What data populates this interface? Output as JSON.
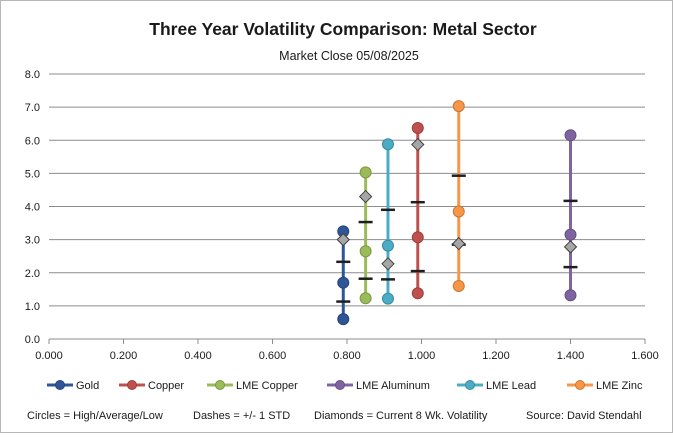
{
  "chart_data": {
    "type": "scatter",
    "title": "Three Year Volatility Comparison:  Metal Sector",
    "subtitle": "Market Close 05/08/2025",
    "xlim": [
      0,
      1.6
    ],
    "ylim": [
      0,
      8
    ],
    "x_ticks": [
      "0.000",
      "0.200",
      "0.400",
      "0.600",
      "0.800",
      "1.000",
      "1.200",
      "1.400",
      "1.600"
    ],
    "y_ticks": [
      "0.0",
      "1.0",
      "2.0",
      "3.0",
      "4.0",
      "5.0",
      "6.0",
      "7.0",
      "8.0"
    ],
    "grid": "horizontal",
    "legend_position": "bottom",
    "series": [
      {
        "name": "Gold",
        "color": "#2f5597",
        "x": 0.79,
        "high": 3.25,
        "average": 1.7,
        "low": 0.6,
        "std_upper": 2.33,
        "std_lower": 1.13,
        "current": 3.0
      },
      {
        "name": "Copper",
        "color": "#c0504d",
        "x": 0.99,
        "high": 6.37,
        "average": 3.07,
        "low": 1.38,
        "std_upper": 4.13,
        "std_lower": 2.05,
        "current": 5.87
      },
      {
        "name": "LME Copper",
        "color": "#9bbb59",
        "x": 0.85,
        "high": 5.03,
        "average": 2.65,
        "low": 1.23,
        "std_upper": 3.53,
        "std_lower": 1.82,
        "current": 4.3
      },
      {
        "name": "LME Aluminum",
        "color": "#8064a2",
        "x": 1.4,
        "high": 6.15,
        "average": 3.15,
        "low": 1.32,
        "std_upper": 4.17,
        "std_lower": 2.17,
        "current": 2.78
      },
      {
        "name": "LME Lead",
        "color": "#4bacc6",
        "x": 0.91,
        "high": 5.88,
        "average": 2.82,
        "low": 1.22,
        "std_upper": 3.9,
        "std_lower": 1.8,
        "current": 2.27
      },
      {
        "name": "LME Zinc",
        "color": "#f79646",
        "x": 1.1,
        "high": 7.03,
        "average": 3.85,
        "low": 1.6,
        "std_upper": 4.93,
        "std_lower": 2.85,
        "current": 2.88
      }
    ],
    "footnotes": [
      "Circles = High/Average/Low",
      "Dashes = +/- 1 STD",
      "Diamonds = Current 8 Wk. Volatility",
      "Source: David Stendahl"
    ]
  }
}
